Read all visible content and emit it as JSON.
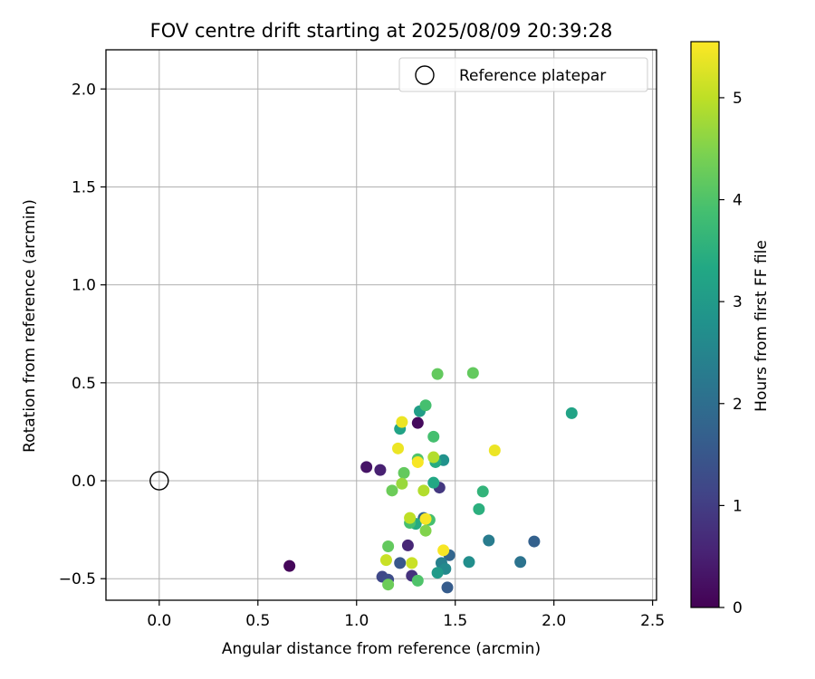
{
  "chart_data": {
    "type": "scatter",
    "title": "FOV centre drift starting at 2025/08/09 20:39:28",
    "xlabel": "Angular distance from reference (arcmin)",
    "ylabel": "Rotation from reference (arcmin)",
    "xlim": [
      -0.27,
      2.52
    ],
    "ylim": [
      -0.61,
      2.2
    ],
    "xticks": [
      "0.0",
      "0.5",
      "1.0",
      "1.5",
      "2.0",
      "2.5"
    ],
    "yticks": [
      "−0.5",
      "0.0",
      "0.5",
      "1.0",
      "1.5",
      "2.0"
    ],
    "grid": true,
    "legend": {
      "position": "top-right",
      "label": "Reference platepar"
    },
    "reference_point": {
      "x": 0.0,
      "y": 0.0
    },
    "colorbar": {
      "label": "Hours from first FF file",
      "min": 0,
      "max": 5.55,
      "ticks": [
        "0",
        "1",
        "2",
        "3",
        "4",
        "5"
      ],
      "colormap": "viridis"
    },
    "points": [
      {
        "x": 0.66,
        "y": -0.435,
        "h": 0.1
      },
      {
        "x": 1.05,
        "y": 0.07,
        "h": 0.3
      },
      {
        "x": 1.12,
        "y": 0.055,
        "h": 0.5
      },
      {
        "x": 1.31,
        "y": 0.295,
        "h": 0.15
      },
      {
        "x": 1.26,
        "y": -0.33,
        "h": 0.6
      },
      {
        "x": 1.28,
        "y": -0.485,
        "h": 0.8
      },
      {
        "x": 1.42,
        "y": -0.035,
        "h": 0.9
      },
      {
        "x": 1.13,
        "y": -0.49,
        "h": 1.2
      },
      {
        "x": 1.16,
        "y": -0.505,
        "h": 1.3
      },
      {
        "x": 1.22,
        "y": -0.42,
        "h": 1.5
      },
      {
        "x": 1.46,
        "y": -0.545,
        "h": 1.6
      },
      {
        "x": 1.9,
        "y": -0.31,
        "h": 1.7
      },
      {
        "x": 1.47,
        "y": -0.38,
        "h": 1.8
      },
      {
        "x": 1.34,
        "y": -0.19,
        "h": 1.8
      },
      {
        "x": 1.83,
        "y": -0.415,
        "h": 2.1
      },
      {
        "x": 1.67,
        "y": -0.305,
        "h": 2.3
      },
      {
        "x": 1.43,
        "y": -0.42,
        "h": 2.4
      },
      {
        "x": 1.45,
        "y": -0.45,
        "h": 2.6
      },
      {
        "x": 1.57,
        "y": -0.415,
        "h": 2.7
      },
      {
        "x": 1.44,
        "y": 0.105,
        "h": 2.8
      },
      {
        "x": 1.41,
        "y": -0.47,
        "h": 3.0
      },
      {
        "x": 2.09,
        "y": 0.345,
        "h": 3.2
      },
      {
        "x": 1.32,
        "y": 0.355,
        "h": 3.1
      },
      {
        "x": 1.22,
        "y": 0.265,
        "h": 3.2
      },
      {
        "x": 1.39,
        "y": -0.01,
        "h": 3.3
      },
      {
        "x": 1.4,
        "y": 0.095,
        "h": 3.4
      },
      {
        "x": 1.62,
        "y": -0.145,
        "h": 3.5
      },
      {
        "x": 1.64,
        "y": -0.055,
        "h": 3.6
      },
      {
        "x": 1.36,
        "y": -0.2,
        "h": 3.5
      },
      {
        "x": 1.3,
        "y": -0.22,
        "h": 3.4
      },
      {
        "x": 1.35,
        "y": 0.385,
        "h": 3.9
      },
      {
        "x": 1.39,
        "y": 0.225,
        "h": 3.9
      },
      {
        "x": 1.31,
        "y": 0.11,
        "h": 4.0
      },
      {
        "x": 1.27,
        "y": -0.215,
        "h": 3.9
      },
      {
        "x": 1.37,
        "y": -0.2,
        "h": 3.9
      },
      {
        "x": 1.31,
        "y": -0.51,
        "h": 4.0
      },
      {
        "x": 1.41,
        "y": 0.545,
        "h": 4.2
      },
      {
        "x": 1.59,
        "y": 0.55,
        "h": 4.2
      },
      {
        "x": 1.24,
        "y": 0.04,
        "h": 4.2
      },
      {
        "x": 1.18,
        "y": -0.05,
        "h": 4.3
      },
      {
        "x": 1.16,
        "y": -0.335,
        "h": 4.2
      },
      {
        "x": 1.16,
        "y": -0.53,
        "h": 4.3
      },
      {
        "x": 1.35,
        "y": -0.255,
        "h": 4.5
      },
      {
        "x": 1.23,
        "y": -0.015,
        "h": 4.7
      },
      {
        "x": 1.34,
        "y": -0.05,
        "h": 4.9
      },
      {
        "x": 1.39,
        "y": 0.12,
        "h": 4.9
      },
      {
        "x": 1.27,
        "y": -0.19,
        "h": 5.0
      },
      {
        "x": 1.15,
        "y": -0.405,
        "h": 5.1
      },
      {
        "x": 1.28,
        "y": -0.42,
        "h": 5.1
      },
      {
        "x": 1.23,
        "y": 0.3,
        "h": 5.4
      },
      {
        "x": 1.21,
        "y": 0.165,
        "h": 5.4
      },
      {
        "x": 1.31,
        "y": 0.095,
        "h": 5.5
      },
      {
        "x": 1.7,
        "y": 0.155,
        "h": 5.4
      },
      {
        "x": 1.35,
        "y": -0.195,
        "h": 5.5
      },
      {
        "x": 1.44,
        "y": -0.355,
        "h": 5.5
      }
    ]
  }
}
